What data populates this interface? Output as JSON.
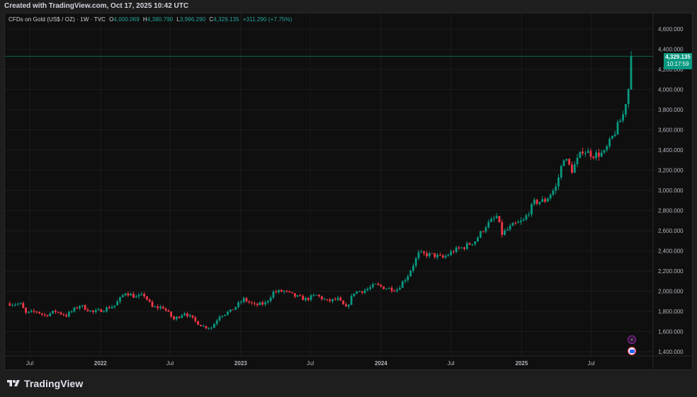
{
  "header": {
    "credit": "Created with TradingView.com, Oct 17, 2025 10:42 UTC"
  },
  "legend": {
    "symbol": "CFDs on Gold (US$ / OZ) · 1W · TVC",
    "open_label": "O",
    "open": "4,000.069",
    "high_label": "H",
    "high": "4,380.790",
    "low_label": "L",
    "low": "3,996.290",
    "close_label": "C",
    "close": "4,329.135",
    "change": "+311.290 (+7.75%)"
  },
  "price_tag": {
    "price": "4,329.135",
    "countdown": "10:17:59"
  },
  "footer": {
    "brand": "TradingView"
  },
  "colors": {
    "up": "#089981",
    "down": "#f23645",
    "background": "#0f0f0f",
    "grid": "#1c1c1c",
    "text": "#b2b5be"
  },
  "icons": {
    "event_1": "lightning-icon",
    "event_2": "us-flag-icon"
  },
  "chart_data": {
    "type": "candlestick",
    "interval": "1W",
    "ylim": [
      1350,
      4650
    ],
    "yticks": [
      {
        "value": 1400,
        "label": "1,400.000"
      },
      {
        "value": 1600,
        "label": "1,600.000"
      },
      {
        "value": 1800,
        "label": "1,800.000"
      },
      {
        "value": 2000,
        "label": "2,000.000"
      },
      {
        "value": 2200,
        "label": "2,200.000"
      },
      {
        "value": 2400,
        "label": "2,400.000"
      },
      {
        "value": 2600,
        "label": "2,600.000"
      },
      {
        "value": 2800,
        "label": "2,800.000"
      },
      {
        "value": 3000,
        "label": "3,000.000"
      },
      {
        "value": 3200,
        "label": "3,200.000"
      },
      {
        "value": 3400,
        "label": "3,400.000"
      },
      {
        "value": 3600,
        "label": "3,600.000"
      },
      {
        "value": 3800,
        "label": "3,800.000"
      },
      {
        "value": 4000,
        "label": "4,000.000"
      },
      {
        "value": 4200,
        "label": "4,200.000"
      },
      {
        "value": 4400,
        "label": "4,400.000"
      },
      {
        "value": 4600,
        "label": "4,600.000"
      }
    ],
    "xticks": [
      {
        "date": "2021-07-01",
        "label": "Jul"
      },
      {
        "date": "2022-01-01",
        "label": "2022"
      },
      {
        "date": "2022-07-01",
        "label": "Jul"
      },
      {
        "date": "2023-01-01",
        "label": "2023"
      },
      {
        "date": "2023-07-01",
        "label": "Jul"
      },
      {
        "date": "2024-01-01",
        "label": "2024"
      },
      {
        "date": "2024-07-01",
        "label": "Jul"
      },
      {
        "date": "2025-01-01",
        "label": "2025"
      },
      {
        "date": "2025-07-01",
        "label": "Jul"
      }
    ],
    "last_price": 4329.135,
    "closes": [
      [
        "2021-05-03",
        1880
      ],
      [
        "2021-06-07",
        1870
      ],
      [
        "2021-06-21",
        1780
      ],
      [
        "2021-07-19",
        1800
      ],
      [
        "2021-08-09",
        1760
      ],
      [
        "2021-09-06",
        1800
      ],
      [
        "2021-10-04",
        1760
      ],
      [
        "2021-11-08",
        1860
      ],
      [
        "2021-12-13",
        1790
      ],
      [
        "2022-01-10",
        1820
      ],
      [
        "2022-02-07",
        1860
      ],
      [
        "2022-03-07",
        1990
      ],
      [
        "2022-04-04",
        1940
      ],
      [
        "2022-04-25",
        1960
      ],
      [
        "2022-05-16",
        1840
      ],
      [
        "2022-06-13",
        1840
      ],
      [
        "2022-07-11",
        1720
      ],
      [
        "2022-08-08",
        1790
      ],
      [
        "2022-09-05",
        1700
      ],
      [
        "2022-09-26",
        1650
      ],
      [
        "2022-10-17",
        1640
      ],
      [
        "2022-11-07",
        1760
      ],
      [
        "2022-12-05",
        1800
      ],
      [
        "2023-01-09",
        1920
      ],
      [
        "2023-02-06",
        1860
      ],
      [
        "2023-03-06",
        1880
      ],
      [
        "2023-03-27",
        1990
      ],
      [
        "2023-04-24",
        2000
      ],
      [
        "2023-05-22",
        1950
      ],
      [
        "2023-06-19",
        1920
      ],
      [
        "2023-07-17",
        1960
      ],
      [
        "2023-08-14",
        1900
      ],
      [
        "2023-09-11",
        1920
      ],
      [
        "2023-10-02",
        1830
      ],
      [
        "2023-10-23",
        1990
      ],
      [
        "2023-11-20",
        2010
      ],
      [
        "2023-12-18",
        2060
      ],
      [
        "2024-01-15",
        2030
      ],
      [
        "2024-02-12",
        2020
      ],
      [
        "2024-03-11",
        2160
      ],
      [
        "2024-04-08",
        2370
      ],
      [
        "2024-05-13",
        2360
      ],
      [
        "2024-06-10",
        2330
      ],
      [
        "2024-07-08",
        2400
      ],
      [
        "2024-08-05",
        2440
      ],
      [
        "2024-09-02",
        2500
      ],
      [
        "2024-09-30",
        2650
      ],
      [
        "2024-10-28",
        2740
      ],
      [
        "2024-11-11",
        2570
      ],
      [
        "2024-12-09",
        2650
      ],
      [
        "2025-01-06",
        2700
      ],
      [
        "2025-02-03",
        2880
      ],
      [
        "2025-03-03",
        2900
      ],
      [
        "2025-03-31",
        3030
      ],
      [
        "2025-04-21",
        3330
      ],
      [
        "2025-05-12",
        3200
      ],
      [
        "2025-06-09",
        3400
      ],
      [
        "2025-07-07",
        3350
      ],
      [
        "2025-08-04",
        3370
      ],
      [
        "2025-09-01",
        3580
      ],
      [
        "2025-09-22",
        3750
      ],
      [
        "2025-10-06",
        4010
      ],
      [
        "2025-10-13",
        4329.135
      ]
    ]
  }
}
